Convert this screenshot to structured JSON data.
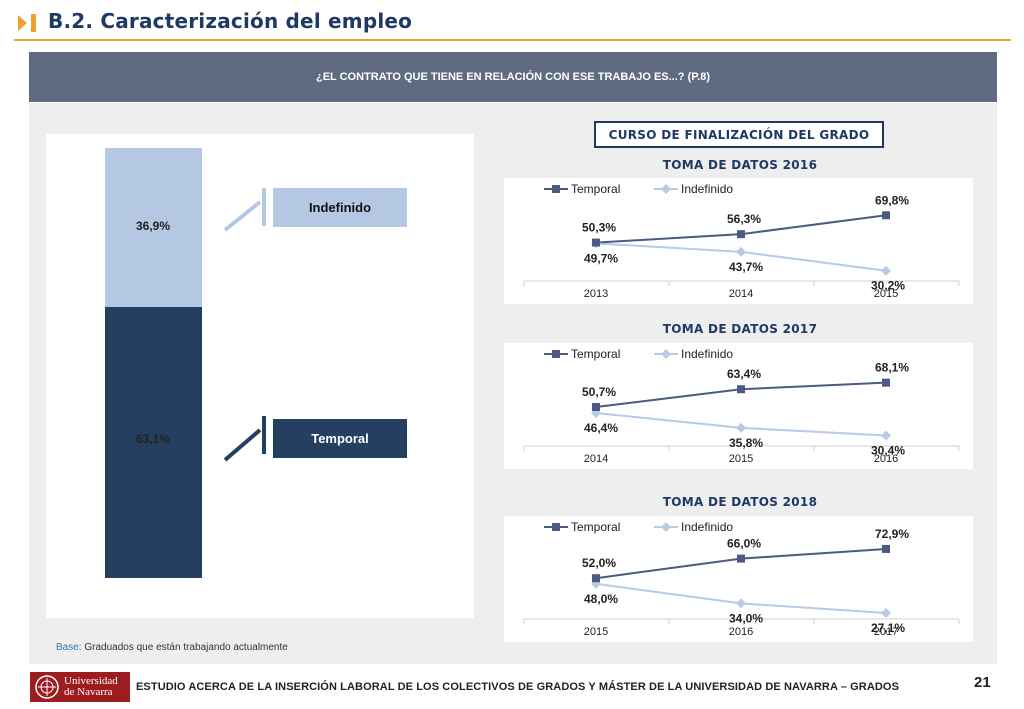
{
  "header": {
    "title": "B.2. Caracterización del empleo"
  },
  "question": "¿EL CONTRATO QUE TIENE EN RELACIÓN CON ESE TRABAJO ES...? (P.8)",
  "subtitle": "CURSO DE FINALIZACIÓN DEL GRADO",
  "colors": {
    "temporal": "#243f60",
    "indefinido": "#b4c7e3",
    "temporal_line": "#4a5c82",
    "indefinido_line": "#b7cbe6",
    "accent": "#f0a030",
    "brand_red": "#9d1c20"
  },
  "chart_data": [
    {
      "type": "bar",
      "stacked": true,
      "series": [
        {
          "name": "Temporal",
          "values": [
            63.1
          ],
          "labels": [
            "63,1%"
          ]
        },
        {
          "name": "Indefinido",
          "values": [
            36.9
          ],
          "labels": [
            "36,9%"
          ]
        }
      ],
      "ylim": [
        0,
        100
      ]
    },
    {
      "type": "line",
      "title": "TOMA DE DATOS 2016",
      "categories": [
        "2013",
        "2014",
        "2015"
      ],
      "series": [
        {
          "name": "Temporal",
          "values": [
            50.3,
            56.3,
            69.8
          ],
          "labels": [
            "50,3%",
            "56,3%",
            "69,8%"
          ]
        },
        {
          "name": "Indefinido",
          "values": [
            49.7,
            43.7,
            30.2
          ],
          "labels": [
            "49,7%",
            "43,7%",
            "30,2%"
          ]
        }
      ],
      "legend": "top-left"
    },
    {
      "type": "line",
      "title": "TOMA DE DATOS 2017",
      "categories": [
        "2014",
        "2015",
        "2016"
      ],
      "series": [
        {
          "name": "Temporal",
          "values": [
            50.7,
            63.4,
            68.1
          ],
          "labels": [
            "50,7%",
            "63,4%",
            "68,1%"
          ]
        },
        {
          "name": "Indefinido",
          "values": [
            46.4,
            35.8,
            30.4
          ],
          "labels": [
            "46,4%",
            "35,8%",
            "30,4%"
          ]
        }
      ],
      "legend": "top-left"
    },
    {
      "type": "line",
      "title": "TOMA DE DATOS 2018",
      "categories": [
        "2015",
        "2016",
        "2017"
      ],
      "series": [
        {
          "name": "Temporal",
          "values": [
            52.0,
            66.0,
            72.9
          ],
          "labels": [
            "52,0%",
            "66,0%",
            "72,9%"
          ]
        },
        {
          "name": "Indefinido",
          "values": [
            48.0,
            34.0,
            27.1
          ],
          "labels": [
            "48,0%",
            "34,0%",
            "27,1%"
          ]
        }
      ],
      "legend": "top-left"
    }
  ],
  "base_note": {
    "label": "Base:",
    "text": "Graduados que están trabajando actualmente"
  },
  "footer": {
    "logo_line1": "Universidad",
    "logo_line2": "de Navarra",
    "text": "ESTUDIO ACERCA DE LA INSERCIÓN LABORAL DE LOS COLECTIVOS DE GRADOS Y MÁSTER DE LA UNIVERSIDAD DE NAVARRA – GRADOS",
    "page_number": "21"
  }
}
